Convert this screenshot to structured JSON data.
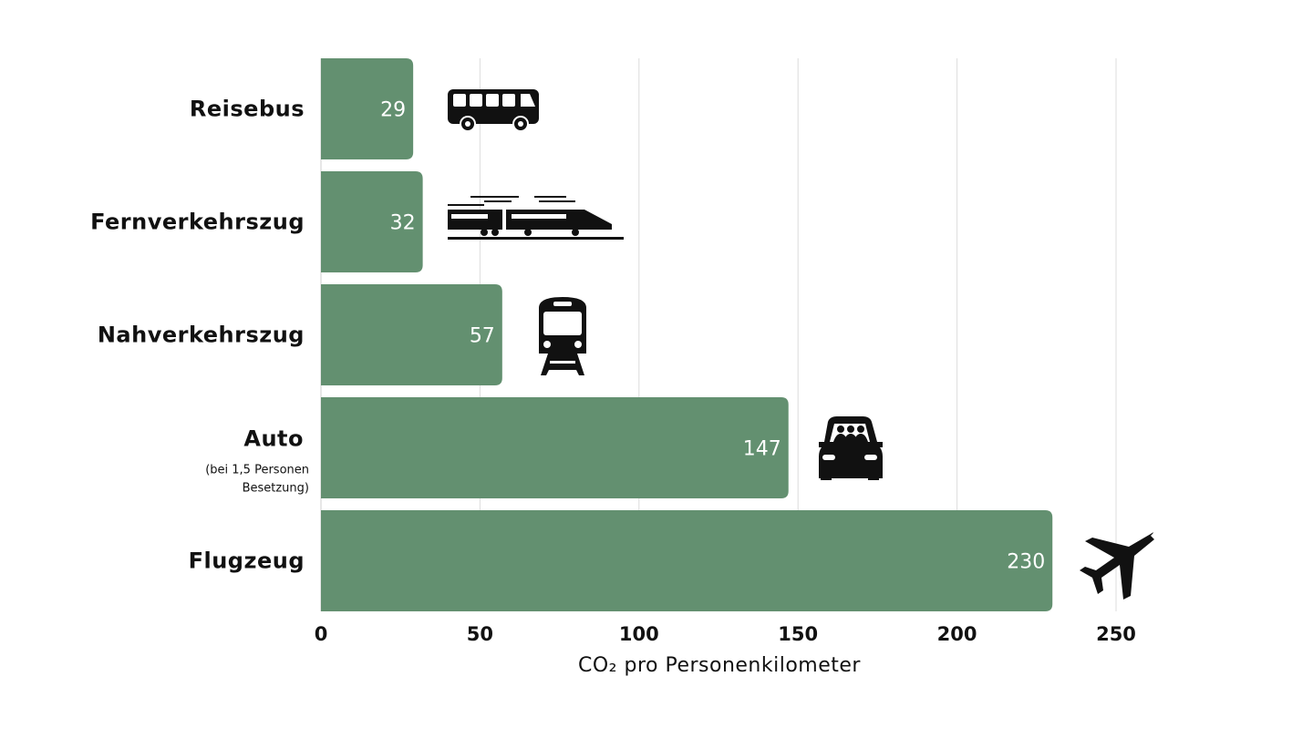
{
  "chart_data": {
    "type": "bar",
    "orientation": "horizontal",
    "categories": [
      "Reisebus",
      "Fernverkehrszug",
      "Nahverkehrszug",
      "Auto",
      "Flugzeug"
    ],
    "category_notes": [
      "",
      "",
      "",
      "(bei 1,5 Personen Besetzung)",
      ""
    ],
    "category_note_lines": [
      [],
      [],
      [],
      [
        "(bei 1,5 Personen",
        "Besetzung)"
      ],
      []
    ],
    "values": [
      29,
      32,
      57,
      147,
      230
    ],
    "icons": [
      "bus-icon",
      "train-icon",
      "tram-icon",
      "car-icon",
      "airplane-icon"
    ],
    "xlabel": "CO₂ pro Personenkilometer",
    "ylabel": "",
    "xlim": [
      0,
      250
    ],
    "xticks": [
      0,
      50,
      100,
      150,
      200,
      250
    ],
    "grid": true,
    "bar_color": "#639070"
  }
}
